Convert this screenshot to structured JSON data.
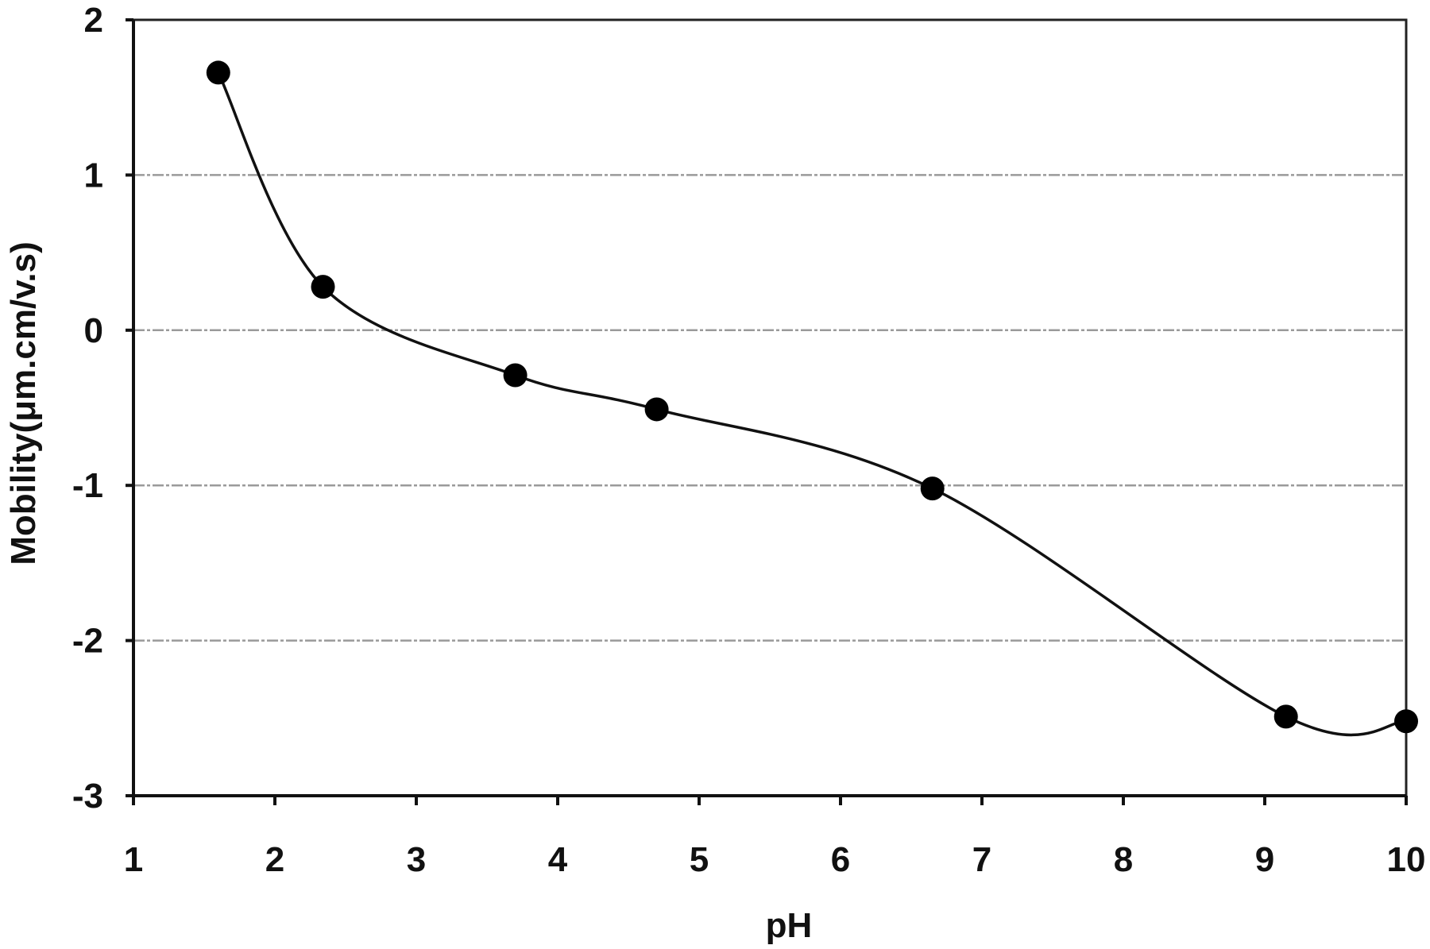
{
  "chart_data": {
    "type": "line",
    "title": "",
    "xlabel": "pH",
    "ylabel": "Mobility(μm.cm/v.s)",
    "xlim": [
      1,
      10
    ],
    "ylim": [
      -3,
      2
    ],
    "x_ticks": [
      1,
      2,
      3,
      4,
      5,
      6,
      7,
      8,
      9,
      10
    ],
    "y_ticks": [
      2,
      1,
      0,
      -1,
      -2,
      -3
    ],
    "grid": {
      "horizontal": true,
      "vertical": false
    },
    "legend": null,
    "smooth": true,
    "marker": "filled-circle",
    "series": [
      {
        "name": "Mobility",
        "x": [
          1.6,
          2.34,
          3.7,
          4.7,
          6.65,
          9.15,
          10.0
        ],
        "y": [
          1.66,
          0.28,
          -0.29,
          -0.51,
          -1.02,
          -2.49,
          -2.52
        ]
      }
    ]
  },
  "colors": {
    "line": "#111111",
    "marker": "#000000",
    "grid": "#9a9a9a",
    "background": "#ffffff"
  }
}
